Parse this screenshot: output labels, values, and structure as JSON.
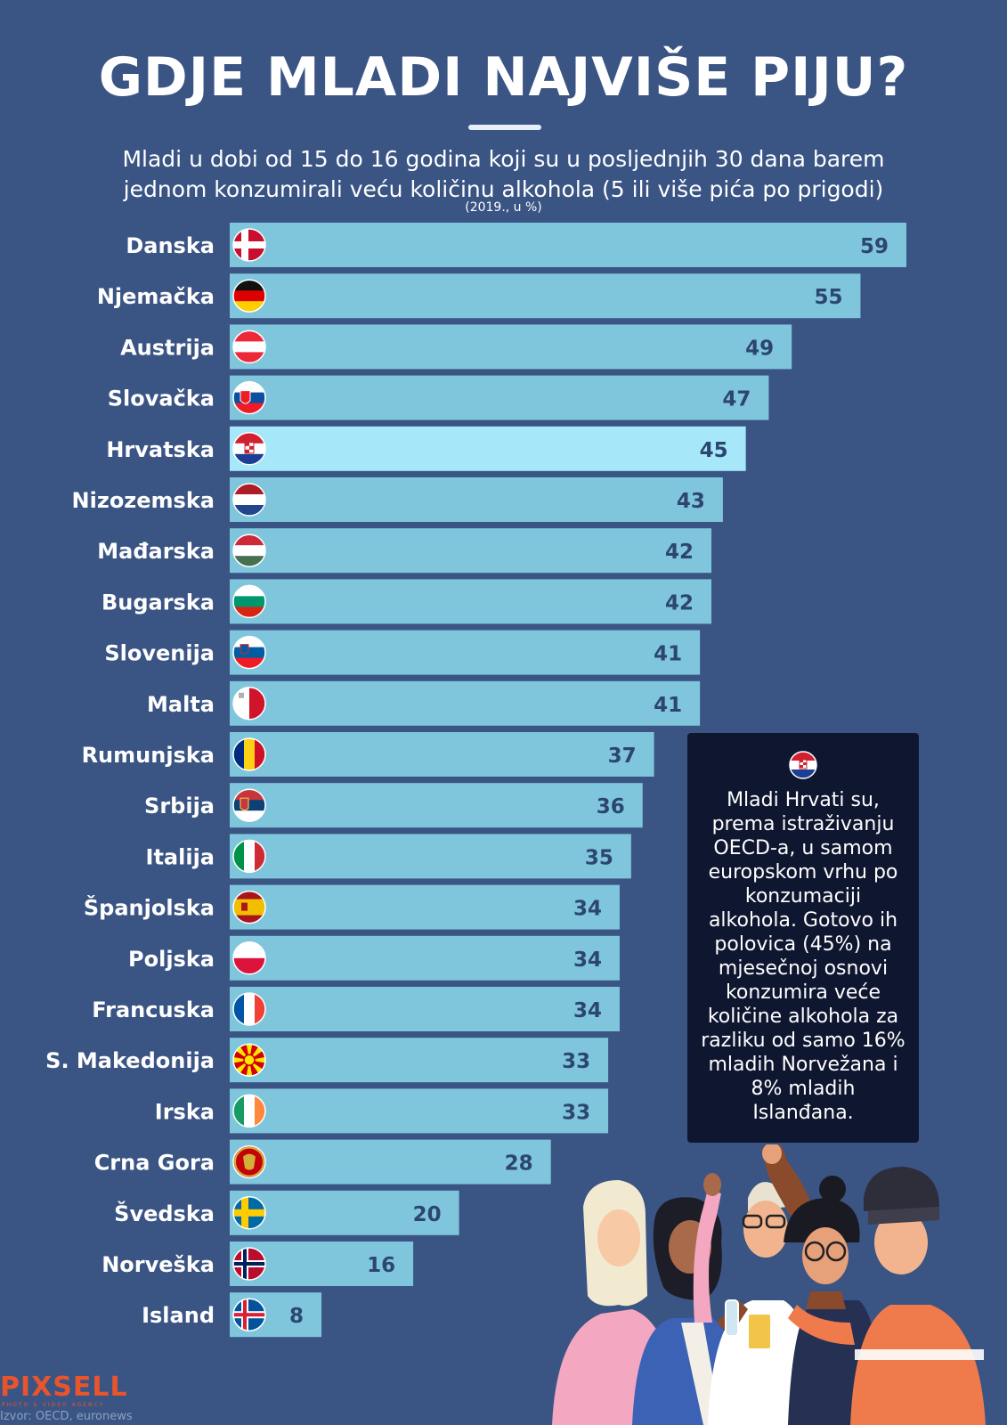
{
  "title": "GDJE MLADI NAJVIŠE PIJU?",
  "subtitle_line1": "Mladi u dobi od 15 do 16 godina koji su u posljednjih 30 dana barem",
  "subtitle_line2": "jednom konzumirali veću količinu alkohola (5 ili više pića po prigodi)",
  "note": "(2019., u %)",
  "callout": {
    "text": "Mladi Hrvati su, prema istraživanju OECD-a, u samom europskom vrhu po konzumaciji alkohola.  Gotovo ih polovica (45%) na mjesečnoj osnovi konzumira veće količine alkohola za razliku od samo 16% mladih Norvežana i 8% mladih Islanđana.",
    "flag_icon": "croatia-flag-icon"
  },
  "logo": "PIXSELL",
  "logo_sub": "PHOTO & VIDEO AGENCY",
  "source": "Izvor: OECD, euronews",
  "colors": {
    "background": "#3a5484",
    "bar": "#7fc6dc",
    "bar_highlight": "#a6e8fa",
    "value_text": "#2d4670",
    "callout_bg": "#0f1630"
  },
  "chart_data": {
    "type": "bar",
    "orientation": "horizontal",
    "categories": [
      "Danska",
      "Njemačka",
      "Austrija",
      "Slovačka",
      "Hrvatska",
      "Nizozemska",
      "Mađarska",
      "Bugarska",
      "Slovenija",
      "Malta",
      "Rumunjska",
      "Srbija",
      "Italija",
      "Španjolska",
      "Poljska",
      "Francuska",
      "S. Makedonija",
      "Irska",
      "Crna Gora",
      "Švedska",
      "Norveška",
      "Island"
    ],
    "values": [
      59,
      55,
      49,
      47,
      45,
      43,
      42,
      42,
      41,
      41,
      37,
      36,
      35,
      34,
      34,
      34,
      33,
      33,
      28,
      20,
      16,
      8
    ],
    "flags": [
      "denmark-flag-icon",
      "germany-flag-icon",
      "austria-flag-icon",
      "slovakia-flag-icon",
      "croatia-flag-icon",
      "netherlands-flag-icon",
      "hungary-flag-icon",
      "bulgaria-flag-icon",
      "slovenia-flag-icon",
      "malta-flag-icon",
      "romania-flag-icon",
      "serbia-flag-icon",
      "italy-flag-icon",
      "spain-flag-icon",
      "poland-flag-icon",
      "france-flag-icon",
      "north-macedonia-flag-icon",
      "ireland-flag-icon",
      "montenegro-flag-icon",
      "sweden-flag-icon",
      "norway-flag-icon",
      "iceland-flag-icon"
    ],
    "highlight": "Hrvatska",
    "xlim": [
      0,
      59
    ],
    "grid": false,
    "legend": "none"
  }
}
